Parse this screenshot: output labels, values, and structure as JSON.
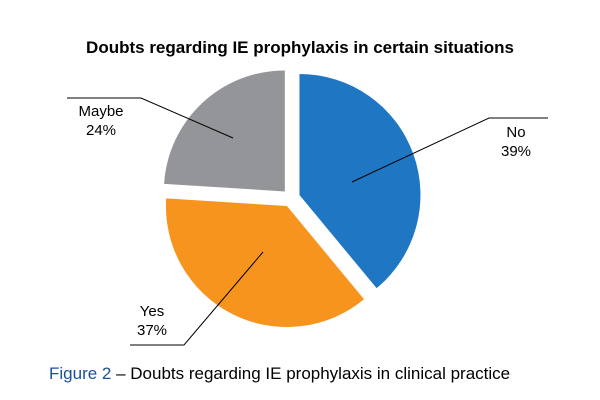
{
  "chart_data": {
    "type": "pie",
    "title": "Doubts regarding IE prophylaxis in certain situations",
    "slices": [
      {
        "label": "No",
        "value": 39,
        "value_label": "39%",
        "color": "#1f77c4",
        "exploded": true
      },
      {
        "label": "Yes",
        "value": 37,
        "value_label": "37%",
        "color": "#f7941d",
        "exploded": true
      },
      {
        "label": "Maybe",
        "value": 24,
        "value_label": "24%",
        "color": "#939598",
        "exploded": true
      }
    ],
    "legend": "none"
  },
  "caption": {
    "figure_label": "Figure 2",
    "text": " – Doubts regarding IE prophylaxis in clinical practice"
  }
}
